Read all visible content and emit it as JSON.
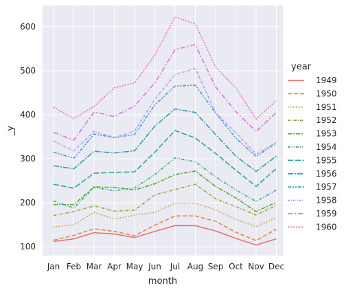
{
  "chart_data": {
    "type": "line",
    "xlabel": "month",
    "ylabel": "_y",
    "categories": [
      "Jan",
      "Feb",
      "Mar",
      "Apr",
      "May",
      "Jun",
      "Jul",
      "Aug",
      "Sep",
      "Oct",
      "Nov",
      "Dec"
    ],
    "ylim": [
      80,
      648
    ],
    "yticks": [
      100,
      200,
      300,
      400,
      500,
      600
    ],
    "grid": true,
    "legend": {
      "title": "year",
      "placement": "right"
    },
    "series": [
      {
        "name": "1949",
        "color": "#e8736e",
        "dash": "solid",
        "values": [
          112,
          118,
          132,
          129,
          121,
          135,
          148,
          148,
          136,
          119,
          104,
          118
        ]
      },
      {
        "name": "1950",
        "color": "#e7873e",
        "dash": "dashed",
        "values": [
          115,
          126,
          141,
          135,
          125,
          149,
          170,
          170,
          158,
          133,
          114,
          140
        ]
      },
      {
        "name": "1951",
        "color": "#c99a2a",
        "dash": "dotted",
        "values": [
          145,
          150,
          178,
          163,
          172,
          178,
          199,
          199,
          184,
          162,
          146,
          166
        ]
      },
      {
        "name": "1952",
        "color": "#9aa32a",
        "dash": "dashdot",
        "values": [
          171,
          180,
          193,
          181,
          183,
          218,
          230,
          242,
          209,
          191,
          172,
          194
        ]
      },
      {
        "name": "1953",
        "color": "#56ae2a",
        "dash": "dashdot2",
        "values": [
          196,
          196,
          236,
          235,
          229,
          243,
          264,
          272,
          237,
          211,
          180,
          201
        ]
      },
      {
        "name": "1954",
        "color": "#2bad7f",
        "dash": "dashdotdot",
        "values": [
          204,
          188,
          235,
          227,
          234,
          264,
          302,
          293,
          259,
          229,
          203,
          229
        ]
      },
      {
        "name": "1955",
        "color": "#2aa89b",
        "dash": "longdash",
        "values": [
          242,
          233,
          267,
          269,
          270,
          315,
          364,
          347,
          312,
          274,
          237,
          278
        ]
      },
      {
        "name": "1956",
        "color": "#2aa4ae",
        "dash": "dashdotlong",
        "values": [
          284,
          277,
          317,
          313,
          318,
          374,
          413,
          405,
          355,
          306,
          271,
          306
        ]
      },
      {
        "name": "1957",
        "color": "#36a2d8",
        "dash": "dashdot3",
        "values": [
          315,
          301,
          356,
          348,
          355,
          422,
          465,
          467,
          404,
          347,
          305,
          336
        ]
      },
      {
        "name": "1958",
        "color": "#a68ff0",
        "dash": "dashdot4",
        "values": [
          340,
          318,
          362,
          348,
          363,
          435,
          491,
          505,
          404,
          359,
          310,
          337
        ]
      },
      {
        "name": "1959",
        "color": "#e36cea",
        "dash": "dashdot5",
        "values": [
          360,
          342,
          406,
          396,
          420,
          472,
          548,
          559,
          463,
          407,
          362,
          405
        ]
      },
      {
        "name": "1960",
        "color": "#f66bbf",
        "dash": "dotted2",
        "values": [
          417,
          391,
          419,
          461,
          472,
          535,
          622,
          606,
          508,
          461,
          390,
          432
        ]
      }
    ]
  }
}
